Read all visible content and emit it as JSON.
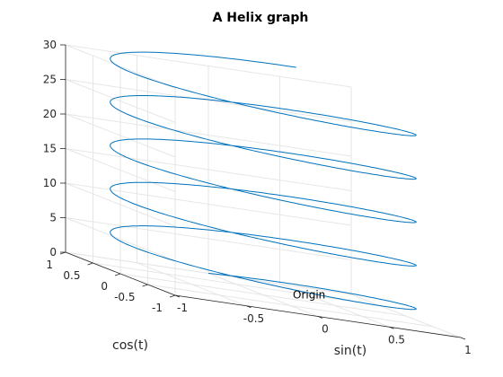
{
  "chart_data": {
    "type": "line",
    "subtype": "3d-helix",
    "title": "A Helix graph",
    "xlabel": "sin(t)",
    "ylabel": "cos(t)",
    "zlabel": "",
    "xlim": [
      -1,
      1
    ],
    "ylim": [
      -1,
      1
    ],
    "zlim": [
      0,
      30
    ],
    "x_ticks": [
      -1,
      -0.5,
      0,
      0.5,
      1
    ],
    "y_ticks": [
      -1,
      -0.5,
      0,
      0.5,
      1
    ],
    "z_ticks": [
      0,
      5,
      10,
      15,
      20,
      25,
      30
    ],
    "x_tick_labels": [
      "-1",
      "-0.5",
      "0",
      "0.5",
      "1"
    ],
    "y_tick_labels": [
      "-1",
      "-0.5",
      "0",
      "0.5",
      "1"
    ],
    "z_tick_labels": [
      "0",
      "5",
      "10",
      "15",
      "20",
      "25",
      "30"
    ],
    "grid": true,
    "series": [
      {
        "x_expression": "sin(t)",
        "y_expression": "cos(t)",
        "z_expression": "t",
        "t_range": [
          0,
          32
        ],
        "color": "#0072bd"
      }
    ],
    "annotations": [
      {
        "text": "Origin",
        "x": 0,
        "y": 0,
        "z": 0
      }
    ]
  }
}
